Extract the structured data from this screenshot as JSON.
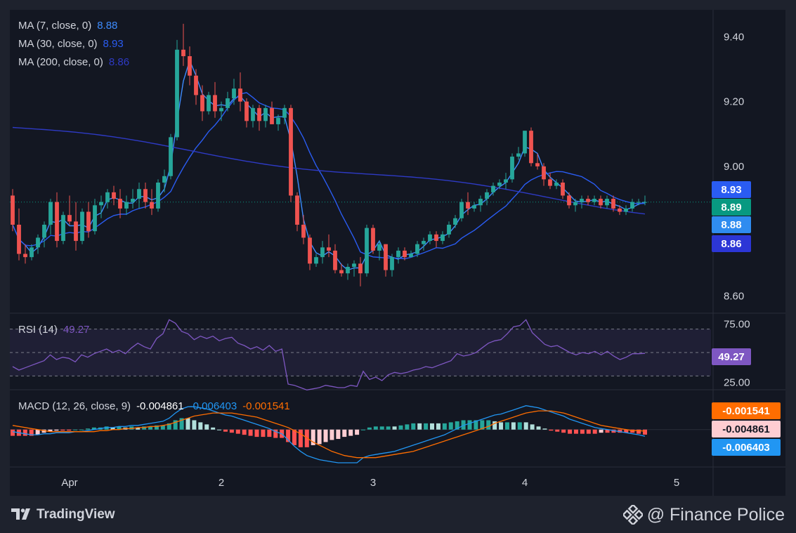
{
  "chart_data": [
    {
      "type": "candlestick",
      "title": "",
      "price_axis_ticks": [
        "9.40",
        "9.20",
        "9.00",
        "8.60"
      ],
      "time_axis_ticks": [
        "Apr",
        "2",
        "3",
        "4",
        "5"
      ],
      "ylim": [
        8.56,
        9.47
      ],
      "current_price": 8.89,
      "up_color": "#26a69a",
      "down_color": "#ef5350",
      "candles": [
        [
          8.91,
          8.93,
          8.8,
          8.82
        ],
        [
          8.82,
          8.87,
          8.71,
          8.73
        ],
        [
          8.73,
          8.76,
          8.7,
          8.72
        ],
        [
          8.72,
          8.76,
          8.71,
          8.75
        ],
        [
          8.75,
          8.79,
          8.73,
          8.78
        ],
        [
          8.78,
          8.83,
          8.75,
          8.82
        ],
        [
          8.82,
          8.9,
          8.79,
          8.89
        ],
        [
          8.89,
          8.92,
          8.75,
          8.77
        ],
        [
          8.77,
          8.86,
          8.76,
          8.85
        ],
        [
          8.85,
          8.91,
          8.82,
          8.83
        ],
        [
          8.83,
          8.89,
          8.74,
          8.77
        ],
        [
          8.77,
          8.87,
          8.76,
          8.86
        ],
        [
          8.86,
          8.89,
          8.78,
          8.8
        ],
        [
          8.8,
          8.9,
          8.79,
          8.88
        ],
        [
          8.88,
          8.91,
          8.84,
          8.89
        ],
        [
          8.89,
          8.93,
          8.87,
          8.92
        ],
        [
          8.92,
          8.94,
          8.88,
          8.9
        ],
        [
          8.9,
          8.93,
          8.84,
          8.87
        ],
        [
          8.87,
          8.91,
          8.85,
          8.89
        ],
        [
          8.89,
          8.93,
          8.87,
          8.9
        ],
        [
          8.9,
          8.95,
          8.87,
          8.93
        ],
        [
          8.93,
          8.95,
          8.87,
          8.89
        ],
        [
          8.89,
          8.93,
          8.85,
          8.87
        ],
        [
          8.87,
          8.96,
          8.86,
          8.95
        ],
        [
          8.95,
          8.99,
          8.92,
          8.97
        ],
        [
          8.97,
          9.1,
          8.96,
          9.09
        ],
        [
          9.09,
          9.39,
          9.08,
          9.36
        ],
        [
          9.36,
          9.44,
          9.31,
          9.34
        ],
        [
          9.34,
          9.37,
          9.25,
          9.28
        ],
        [
          9.28,
          9.3,
          9.19,
          9.22
        ],
        [
          9.22,
          9.25,
          9.14,
          9.17
        ],
        [
          9.17,
          9.23,
          9.16,
          9.22
        ],
        [
          9.22,
          9.26,
          9.15,
          9.17
        ],
        [
          9.17,
          9.2,
          9.14,
          9.18
        ],
        [
          9.18,
          9.23,
          9.17,
          9.21
        ],
        [
          9.21,
          9.27,
          9.19,
          9.24
        ],
        [
          9.24,
          9.29,
          9.17,
          9.2
        ],
        [
          9.2,
          9.21,
          9.12,
          9.14
        ],
        [
          9.14,
          9.19,
          9.12,
          9.18
        ],
        [
          9.18,
          9.19,
          9.11,
          9.14
        ],
        [
          9.14,
          9.19,
          9.12,
          9.18
        ],
        [
          9.18,
          9.2,
          9.13,
          9.13
        ],
        [
          9.13,
          9.16,
          9.11,
          9.15
        ],
        [
          9.15,
          9.19,
          9.13,
          9.18
        ],
        [
          9.18,
          9.19,
          8.89,
          8.91
        ],
        [
          8.91,
          8.92,
          8.8,
          8.82
        ],
        [
          8.82,
          8.85,
          8.76,
          8.78
        ],
        [
          8.78,
          8.79,
          8.68,
          8.7
        ],
        [
          8.7,
          8.73,
          8.69,
          8.72
        ],
        [
          8.72,
          8.77,
          8.7,
          8.75
        ],
        [
          8.75,
          8.79,
          8.72,
          8.74
        ],
        [
          8.74,
          8.76,
          8.67,
          8.68
        ],
        [
          8.68,
          8.7,
          8.66,
          8.67
        ],
        [
          8.67,
          8.7,
          8.65,
          8.69
        ],
        [
          8.69,
          8.71,
          8.66,
          8.7
        ],
        [
          8.7,
          8.72,
          8.63,
          8.67
        ],
        [
          8.67,
          8.82,
          8.66,
          8.81
        ],
        [
          8.81,
          8.82,
          8.73,
          8.74
        ],
        [
          8.74,
          8.77,
          8.71,
          8.76
        ],
        [
          8.76,
          8.76,
          8.66,
          8.68
        ],
        [
          8.68,
          8.73,
          8.66,
          8.72
        ],
        [
          8.72,
          8.75,
          8.7,
          8.74
        ],
        [
          8.74,
          8.75,
          8.71,
          8.72
        ],
        [
          8.72,
          8.74,
          8.72,
          8.73
        ],
        [
          8.73,
          8.77,
          8.72,
          8.76
        ],
        [
          8.76,
          8.78,
          8.74,
          8.77
        ],
        [
          8.77,
          8.8,
          8.76,
          8.79
        ],
        [
          8.79,
          8.8,
          8.75,
          8.77
        ],
        [
          8.77,
          8.8,
          8.76,
          8.79
        ],
        [
          8.79,
          8.83,
          8.78,
          8.82
        ],
        [
          8.82,
          8.85,
          8.81,
          8.84
        ],
        [
          8.84,
          8.9,
          8.83,
          8.89
        ],
        [
          8.89,
          8.92,
          8.85,
          8.87
        ],
        [
          8.87,
          8.89,
          8.86,
          8.88
        ],
        [
          8.88,
          8.91,
          8.86,
          8.9
        ],
        [
          8.9,
          8.93,
          8.88,
          8.92
        ],
        [
          8.92,
          8.95,
          8.91,
          8.94
        ],
        [
          8.94,
          8.96,
          8.93,
          8.95
        ],
        [
          8.95,
          8.98,
          8.93,
          8.96
        ],
        [
          8.96,
          9.04,
          8.95,
          9.03
        ],
        [
          9.03,
          9.06,
          9.02,
          9.04
        ],
        [
          9.04,
          9.11,
          9.03,
          9.11
        ],
        [
          9.11,
          9.12,
          9.0,
          9.01
        ],
        [
          9.01,
          9.04,
          8.99,
          9.0
        ],
        [
          9.0,
          9.01,
          8.94,
          8.96
        ],
        [
          8.96,
          8.98,
          8.93,
          8.94
        ],
        [
          8.94,
          8.96,
          8.93,
          8.95
        ],
        [
          8.95,
          8.96,
          8.9,
          8.91
        ],
        [
          8.91,
          8.92,
          8.87,
          8.88
        ],
        [
          8.88,
          8.9,
          8.86,
          8.89
        ],
        [
          8.89,
          8.91,
          8.87,
          8.9
        ],
        [
          8.9,
          8.91,
          8.88,
          8.89
        ],
        [
          8.89,
          8.91,
          8.88,
          8.9
        ],
        [
          8.9,
          8.91,
          8.87,
          8.88
        ],
        [
          8.88,
          8.91,
          8.87,
          8.9
        ],
        [
          8.9,
          8.91,
          8.86,
          8.87
        ],
        [
          8.87,
          8.88,
          8.85,
          8.86
        ],
        [
          8.86,
          8.88,
          8.85,
          8.87
        ],
        [
          8.87,
          8.9,
          8.86,
          8.89
        ],
        [
          8.89,
          8.9,
          8.88,
          8.89
        ],
        [
          8.89,
          8.91,
          8.88,
          8.89
        ]
      ],
      "moving_averages": [
        {
          "label": "MA (7, close, 0)",
          "value": "8.88",
          "color": "#3d8bfd",
          "badge": "8.88",
          "badge_color": "#2f8cf0"
        },
        {
          "label": "MA (30, close, 0)",
          "value": "8.93",
          "color": "#2a5cf2",
          "badge": "8.93",
          "badge_color": "#2a5cf2"
        },
        {
          "label": "MA (200, close, 0)",
          "value": "8.86",
          "color": "#2e3ac4",
          "badge": "8.86",
          "badge_color": "#2c36d6"
        }
      ],
      "price_badge": {
        "value": "8.89",
        "color": "#089981"
      }
    },
    {
      "type": "line",
      "label": "RSI (14)",
      "value": "49.27",
      "color": "#7e57c2",
      "ticks": [
        "75.00",
        "25.00"
      ],
      "ylim": [
        20,
        80
      ],
      "levels": [
        70,
        50,
        30
      ],
      "series": [
        {
          "name": "RSI (14)",
          "values": [
            38,
            35,
            37,
            39,
            41,
            43,
            48,
            44,
            46,
            45,
            42,
            48,
            46,
            49,
            51,
            53,
            50,
            52,
            49,
            54,
            58,
            55,
            53,
            62,
            66,
            78,
            75,
            68,
            66,
            61,
            64,
            62,
            64,
            60,
            62,
            63,
            58,
            56,
            53,
            55,
            52,
            56,
            51,
            53,
            23,
            22,
            20,
            18,
            19,
            20,
            22,
            21,
            20,
            20,
            22,
            21,
            34,
            27,
            29,
            26,
            31,
            33,
            32,
            33,
            35,
            36,
            38,
            37,
            39,
            41,
            43,
            49,
            47,
            48,
            50,
            54,
            58,
            60,
            61,
            66,
            72,
            73,
            78,
            67,
            62,
            57,
            55,
            56,
            53,
            50,
            48,
            50,
            49,
            51,
            48,
            51,
            47,
            44,
            46,
            49,
            49,
            49.27
          ]
        }
      ]
    },
    {
      "type": "bar+line",
      "label": "MACD (12, 26, close, 9)",
      "values_text": [
        "-0.004861",
        "-0.006403",
        "-0.001541"
      ],
      "value_colors": [
        "#ffffff",
        "#2196f3",
        "#ff6d00"
      ],
      "ylim": [
        -0.034,
        0.035
      ],
      "badges": [
        {
          "value": "-0.001541",
          "color": "#ff6d00",
          "text_color": "#ffffff"
        },
        {
          "value": "-0.004861",
          "color": "#ffcdd2",
          "text_color": "#131722"
        },
        {
          "value": "-0.006403",
          "color": "#2196f3",
          "text_color": "#ffffff"
        }
      ],
      "series": [
        {
          "name": "MACD",
          "color": "#2196f3",
          "values": [
            -0.002,
            -0.003,
            -0.004,
            -0.005,
            -0.005,
            -0.004,
            -0.004,
            -0.003,
            -0.003,
            -0.003,
            -0.002,
            -0.002,
            -0.001,
            0.0,
            0.001,
            0.002,
            0.002,
            0.003,
            0.003,
            0.004,
            0.004,
            0.005,
            0.006,
            0.007,
            0.008,
            0.011,
            0.016,
            0.02,
            0.022,
            0.022,
            0.021,
            0.02,
            0.018,
            0.016,
            0.014,
            0.013,
            0.011,
            0.009,
            0.007,
            0.005,
            0.003,
            0.001,
            -0.002,
            -0.004,
            -0.01,
            -0.016,
            -0.021,
            -0.025,
            -0.027,
            -0.029,
            -0.03,
            -0.031,
            -0.032,
            -0.032,
            -0.032,
            -0.032,
            -0.027,
            -0.025,
            -0.024,
            -0.023,
            -0.022,
            -0.021,
            -0.019,
            -0.017,
            -0.015,
            -0.013,
            -0.011,
            -0.009,
            -0.007,
            -0.005,
            -0.002,
            0.001,
            0.004,
            0.006,
            0.008,
            0.01,
            0.012,
            0.014,
            0.015,
            0.017,
            0.019,
            0.021,
            0.023,
            0.022,
            0.021,
            0.019,
            0.017,
            0.015,
            0.013,
            0.01,
            0.008,
            0.006,
            0.004,
            0.002,
            0.001,
            0.0,
            -0.001,
            -0.002,
            -0.003,
            -0.004,
            -0.005,
            -0.006403
          ]
        },
        {
          "name": "Signal",
          "color": "#ff6d00",
          "values": [
            0.004,
            0.003,
            0.002,
            0.001,
            0.0,
            -0.001,
            -0.002,
            -0.002,
            -0.002,
            -0.002,
            -0.002,
            -0.002,
            -0.002,
            -0.002,
            -0.001,
            -0.001,
            0.0,
            0.0,
            0.001,
            0.001,
            0.002,
            0.002,
            0.003,
            0.003,
            0.004,
            0.005,
            0.007,
            0.009,
            0.011,
            0.013,
            0.014,
            0.015,
            0.016,
            0.016,
            0.016,
            0.016,
            0.015,
            0.014,
            0.013,
            0.012,
            0.01,
            0.008,
            0.006,
            0.004,
            0.002,
            -0.001,
            -0.004,
            -0.008,
            -0.012,
            -0.015,
            -0.018,
            -0.021,
            -0.023,
            -0.025,
            -0.026,
            -0.027,
            -0.027,
            -0.027,
            -0.027,
            -0.026,
            -0.025,
            -0.024,
            -0.023,
            -0.022,
            -0.021,
            -0.019,
            -0.017,
            -0.015,
            -0.013,
            -0.011,
            -0.009,
            -0.007,
            -0.005,
            -0.003,
            -0.001,
            0.001,
            0.003,
            0.006,
            0.008,
            0.01,
            0.012,
            0.014,
            0.016,
            0.017,
            0.018,
            0.018,
            0.018,
            0.017,
            0.016,
            0.014,
            0.012,
            0.01,
            0.008,
            0.006,
            0.004,
            0.003,
            0.002,
            0.001,
            0.0,
            -0.001,
            -0.001,
            -0.001541
          ]
        }
      ]
    }
  ],
  "footer": {
    "brand": "TradingView",
    "watermark": "@ Finance Police"
  }
}
